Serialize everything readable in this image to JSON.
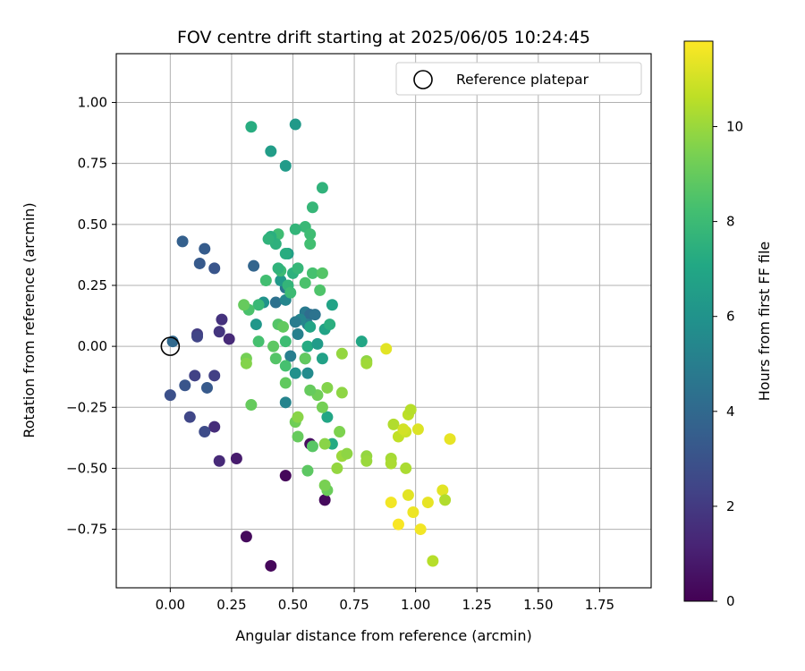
{
  "chart_data": {
    "type": "scatter",
    "title": "FOV centre drift starting at 2025/06/05 10:24:45",
    "xlabel": "Angular distance from reference (arcmin)",
    "ylabel": "Rotation from reference (arcmin)",
    "xlim": [
      -0.22,
      1.96
    ],
    "ylim": [
      -0.99,
      1.2
    ],
    "xticks": [
      0.0,
      0.25,
      0.5,
      0.75,
      1.0,
      1.25,
      1.5,
      1.75
    ],
    "xtick_labels": [
      "0.00",
      "0.25",
      "0.50",
      "0.75",
      "1.00",
      "1.25",
      "1.50",
      "1.75"
    ],
    "yticks": [
      -0.75,
      -0.5,
      -0.25,
      0.0,
      0.25,
      0.5,
      0.75,
      1.0
    ],
    "ytick_labels": [
      "−0.75",
      "−0.50",
      "−0.25",
      "0.00",
      "0.25",
      "0.50",
      "0.75",
      "1.00"
    ],
    "grid": true,
    "legend": {
      "placement": "top-right",
      "entries": [
        "Reference platepar"
      ]
    },
    "reference_point": {
      "x": 0.0,
      "y": 0.0
    },
    "colorbar": {
      "label": "Hours from first FF file",
      "colormap": "viridis",
      "range": [
        0,
        11.8
      ],
      "ticks": [
        0,
        2,
        4,
        6,
        8,
        10
      ],
      "tick_labels": [
        "0",
        "2",
        "4",
        "6",
        "8",
        "10"
      ]
    },
    "points": [
      [
        0.41,
        -0.9,
        0.2
      ],
      [
        0.31,
        -0.78,
        0.3
      ],
      [
        0.47,
        -0.53,
        0.2
      ],
      [
        0.63,
        -0.63,
        0.3
      ],
      [
        0.57,
        -0.4,
        0.4
      ],
      [
        0.27,
        -0.46,
        0.9
      ],
      [
        0.2,
        -0.47,
        1.4
      ],
      [
        0.18,
        -0.33,
        1.5
      ],
      [
        0.24,
        0.03,
        1.4
      ],
      [
        0.21,
        0.11,
        1.7
      ],
      [
        0.2,
        0.06,
        1.8
      ],
      [
        0.18,
        -0.12,
        2.2
      ],
      [
        0.1,
        -0.12,
        2.3
      ],
      [
        0.08,
        -0.29,
        2.5
      ],
      [
        0.11,
        0.05,
        2.1
      ],
      [
        0.11,
        0.04,
        2.4
      ],
      [
        0.14,
        -0.35,
        2.7
      ],
      [
        0.0,
        -0.2,
        2.9
      ],
      [
        0.06,
        -0.16,
        3.1
      ],
      [
        0.15,
        -0.17,
        3.3
      ],
      [
        0.18,
        0.32,
        3.1
      ],
      [
        0.14,
        0.4,
        3.4
      ],
      [
        0.12,
        0.34,
        3.3
      ],
      [
        0.05,
        0.43,
        3.6
      ],
      [
        0.34,
        0.33,
        3.8
      ],
      [
        0.01,
        0.02,
        4.0
      ],
      [
        0.43,
        0.18,
        4.4
      ],
      [
        0.47,
        0.24,
        4.6
      ],
      [
        0.55,
        0.14,
        4.8
      ],
      [
        0.57,
        0.13,
        4.2
      ],
      [
        0.59,
        0.13,
        4.5
      ],
      [
        0.56,
        0.09,
        5.0
      ],
      [
        0.52,
        0.05,
        5.1
      ],
      [
        0.53,
        0.11,
        5.4
      ],
      [
        0.51,
        0.1,
        4.9
      ],
      [
        0.47,
        0.19,
        5.4
      ],
      [
        0.49,
        -0.04,
        5.0
      ],
      [
        0.55,
        -0.05,
        5.2
      ],
      [
        0.56,
        -0.11,
        5.6
      ],
      [
        0.51,
        -0.11,
        5.9
      ],
      [
        0.47,
        -0.23,
        5.3
      ],
      [
        0.35,
        0.09,
        6.2
      ],
      [
        0.38,
        0.18,
        6.0
      ],
      [
        0.45,
        0.27,
        6.3
      ],
      [
        0.48,
        0.38,
        6.6
      ],
      [
        0.57,
        0.08,
        6.9
      ],
      [
        0.63,
        0.07,
        6.8
      ],
      [
        0.65,
        0.09,
        7.4
      ],
      [
        0.66,
        0.17,
        6.8
      ],
      [
        0.56,
        0.0,
        7.2
      ],
      [
        0.6,
        0.01,
        6.4
      ],
      [
        0.62,
        -0.05,
        6.7
      ],
      [
        0.64,
        -0.29,
        7.0
      ],
      [
        0.66,
        -0.4,
        7.2
      ],
      [
        0.78,
        0.02,
        7.0
      ],
      [
        0.51,
        0.91,
        6.3
      ],
      [
        0.41,
        0.8,
        6.5
      ],
      [
        0.47,
        0.74,
        6.4
      ],
      [
        0.33,
        0.9,
        7.3
      ],
      [
        0.62,
        0.65,
        7.6
      ],
      [
        0.58,
        0.57,
        7.8
      ],
      [
        0.55,
        0.49,
        7.9
      ],
      [
        0.57,
        0.46,
        8.1
      ],
      [
        0.57,
        0.42,
        8.2
      ],
      [
        0.51,
        0.48,
        7.7
      ],
      [
        0.44,
        0.46,
        8.1
      ],
      [
        0.43,
        0.42,
        7.5
      ],
      [
        0.41,
        0.45,
        7.4
      ],
      [
        0.4,
        0.44,
        7.6
      ],
      [
        0.45,
        0.31,
        8.0
      ],
      [
        0.44,
        0.32,
        7.6
      ],
      [
        0.47,
        0.38,
        7.3
      ],
      [
        0.5,
        0.3,
        7.5
      ],
      [
        0.52,
        0.32,
        7.8
      ],
      [
        0.58,
        0.3,
        8.3
      ],
      [
        0.62,
        0.3,
        8.6
      ],
      [
        0.55,
        0.26,
        8.4
      ],
      [
        0.61,
        0.23,
        8.5
      ],
      [
        0.48,
        0.25,
        7.7
      ],
      [
        0.49,
        0.22,
        8.0
      ],
      [
        0.39,
        0.27,
        8.2
      ],
      [
        0.36,
        0.17,
        7.9
      ],
      [
        0.32,
        0.15,
        8.4
      ],
      [
        0.3,
        0.17,
        9.0
      ],
      [
        0.36,
        0.02,
        8.3
      ],
      [
        0.44,
        0.09,
        8.6
      ],
      [
        0.46,
        0.08,
        8.9
      ],
      [
        0.47,
        0.02,
        8.1
      ],
      [
        0.42,
        0.0,
        8.8
      ],
      [
        0.43,
        -0.05,
        8.6
      ],
      [
        0.47,
        -0.08,
        8.3
      ],
      [
        0.55,
        -0.05,
        8.9
      ],
      [
        0.62,
        -0.25,
        9.3
      ],
      [
        0.6,
        -0.2,
        9.2
      ],
      [
        0.57,
        -0.18,
        9.0
      ],
      [
        0.64,
        -0.17,
        9.6
      ],
      [
        0.7,
        -0.19,
        9.8
      ],
      [
        0.69,
        -0.35,
        9.5
      ],
      [
        0.64,
        -0.59,
        9.1
      ],
      [
        0.63,
        -0.57,
        9.4
      ],
      [
        0.56,
        -0.51,
        8.8
      ],
      [
        0.58,
        -0.41,
        8.7
      ],
      [
        0.52,
        -0.37,
        9.0
      ],
      [
        0.51,
        -0.31,
        9.2
      ],
      [
        0.52,
        -0.29,
        9.7
      ],
      [
        0.47,
        -0.15,
        8.9
      ],
      [
        0.33,
        -0.24,
        9.0
      ],
      [
        0.31,
        -0.05,
        9.3
      ],
      [
        0.31,
        -0.07,
        9.6
      ],
      [
        0.63,
        -0.4,
        9.7
      ],
      [
        0.68,
        -0.5,
        9.9
      ],
      [
        0.7,
        -0.45,
        10.0
      ],
      [
        0.72,
        -0.44,
        9.8
      ],
      [
        0.7,
        -0.03,
        9.9
      ],
      [
        0.8,
        -0.06,
        9.8
      ],
      [
        0.8,
        -0.07,
        10.1
      ],
      [
        0.8,
        -0.45,
        9.9
      ],
      [
        0.8,
        -0.47,
        10.0
      ],
      [
        0.9,
        -0.46,
        10.2
      ],
      [
        0.9,
        -0.48,
        10.3
      ],
      [
        0.91,
        -0.32,
        10.4
      ],
      [
        0.93,
        -0.37,
        10.7
      ],
      [
        0.96,
        -0.5,
        10.3
      ],
      [
        0.97,
        -0.28,
        10.6
      ],
      [
        0.98,
        -0.26,
        10.5
      ],
      [
        0.96,
        -0.35,
        10.9
      ],
      [
        0.95,
        -0.34,
        11.0
      ],
      [
        1.01,
        -0.34,
        11.2
      ],
      [
        1.14,
        -0.38,
        11.4
      ],
      [
        1.11,
        -0.59,
        11.3
      ],
      [
        1.12,
        -0.63,
        10.4
      ],
      [
        1.07,
        -0.88,
        10.5
      ],
      [
        1.05,
        -0.64,
        11.4
      ],
      [
        0.99,
        -0.68,
        11.5
      ],
      [
        0.97,
        -0.61,
        11.3
      ],
      [
        0.9,
        -0.64,
        11.6
      ],
      [
        0.93,
        -0.73,
        11.7
      ],
      [
        1.02,
        -0.75,
        11.6
      ],
      [
        0.88,
        -0.01,
        11.3
      ]
    ]
  }
}
